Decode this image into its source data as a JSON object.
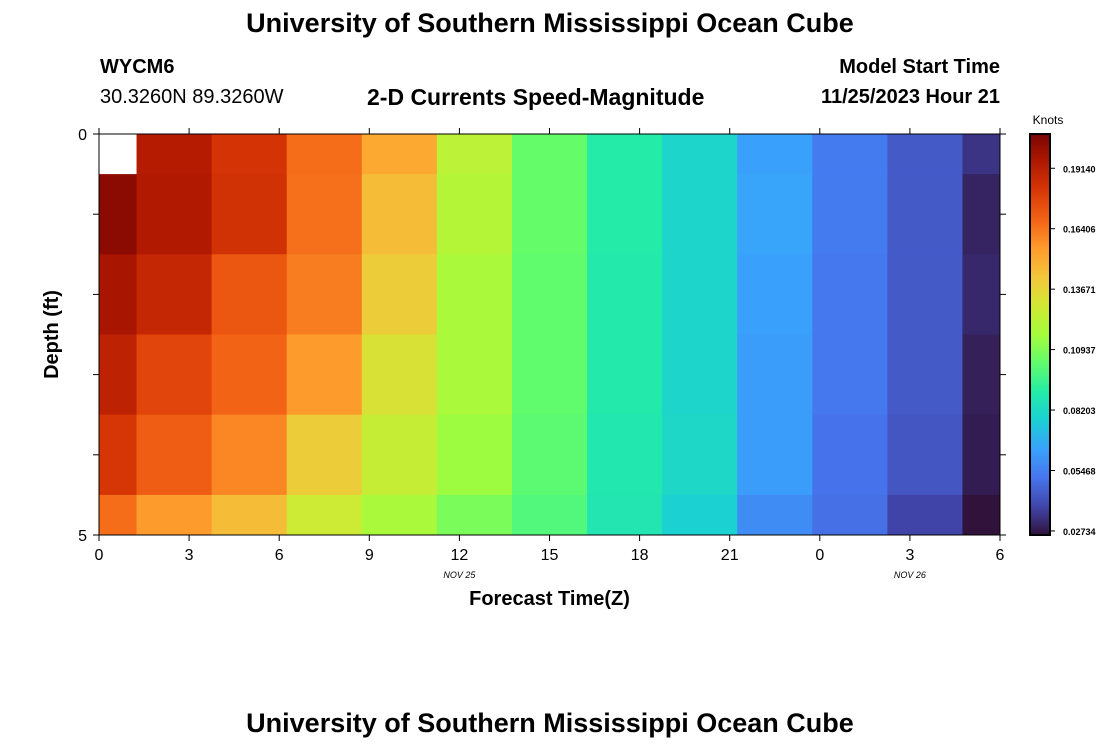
{
  "header": {
    "title": "University of Southern Mississippi Ocean Cube",
    "station_id": "WYCM6",
    "coordinates": "30.3260N  89.3260W",
    "subtitle": "2-D Currents Speed-Magnitude",
    "model_start_label": "Model Start Time",
    "model_start_value": "11/25/2023 Hour 21"
  },
  "footer": {
    "title": "University of Southern Mississippi Ocean Cube"
  },
  "chart_data": {
    "type": "heatmap",
    "title": "2-D Currents Speed-Magnitude",
    "xlabel": "Forecast Time(Z)",
    "ylabel": "Depth (ft)",
    "x_tick_labels": [
      "0",
      "3",
      "6",
      "9",
      "12",
      "15",
      "18",
      "21",
      "0",
      "3",
      "6"
    ],
    "x_tick_hours": [
      0,
      3,
      6,
      9,
      12,
      15,
      18,
      21,
      24,
      27,
      30
    ],
    "x_date_labels": [
      {
        "label": "NOV 25",
        "hour": 12
      },
      {
        "label": "NOV 26",
        "hour": 27
      }
    ],
    "xlim": [
      0,
      30
    ],
    "y_tick_labels": [
      "0",
      "5"
    ],
    "ylim": [
      0,
      5
    ],
    "y_reversed": true,
    "time_hours": [
      0,
      2.5,
      5,
      7.5,
      10,
      12.5,
      15,
      17.5,
      20,
      22.5,
      25,
      27.5,
      30
    ],
    "depth_ft": [
      0,
      1,
      2,
      3,
      4,
      5
    ],
    "values_knots": [
      [
        null,
        0.193,
        0.183,
        0.166,
        0.151,
        0.123,
        0.104,
        0.09,
        0.08,
        0.064,
        0.053,
        0.044,
        0.034
      ],
      [
        0.203,
        0.194,
        0.184,
        0.165,
        0.145,
        0.121,
        0.104,
        0.09,
        0.08,
        0.065,
        0.053,
        0.044,
        0.03
      ],
      [
        0.196,
        0.188,
        0.172,
        0.162,
        0.14,
        0.118,
        0.103,
        0.089,
        0.08,
        0.064,
        0.052,
        0.044,
        0.031
      ],
      [
        0.19,
        0.177,
        0.168,
        0.155,
        0.132,
        0.118,
        0.103,
        0.089,
        0.08,
        0.063,
        0.052,
        0.044,
        0.029
      ],
      [
        0.182,
        0.17,
        0.16,
        0.14,
        0.126,
        0.115,
        0.102,
        0.088,
        0.081,
        0.063,
        0.051,
        0.043,
        0.028
      ],
      [
        0.166,
        0.155,
        0.145,
        0.128,
        0.118,
        0.108,
        0.1,
        0.087,
        0.078,
        0.058,
        0.05,
        0.038,
        0.025
      ]
    ],
    "colorbar": {
      "label": "Knots",
      "min": 0.0255,
      "max": 0.2069,
      "tick_values": [
        0.1914,
        0.16406,
        0.13671,
        0.10937,
        0.08203,
        0.05468,
        0.02734
      ],
      "tick_labels": [
        "0.19140",
        "0.16406",
        "0.13671",
        "0.10937",
        "0.08203",
        "0.05468",
        "0.02734"
      ]
    },
    "colormap": [
      "#30123b",
      "#4145ab",
      "#4675ed",
      "#39a2fc",
      "#1bcfd4",
      "#24eca6",
      "#61fc6c",
      "#a4fc3b",
      "#d1e834",
      "#f3c63a",
      "#fe9b2d",
      "#f36315",
      "#d93806",
      "#b11901",
      "#7a0403"
    ],
    "missing_color": "#ffffff"
  }
}
